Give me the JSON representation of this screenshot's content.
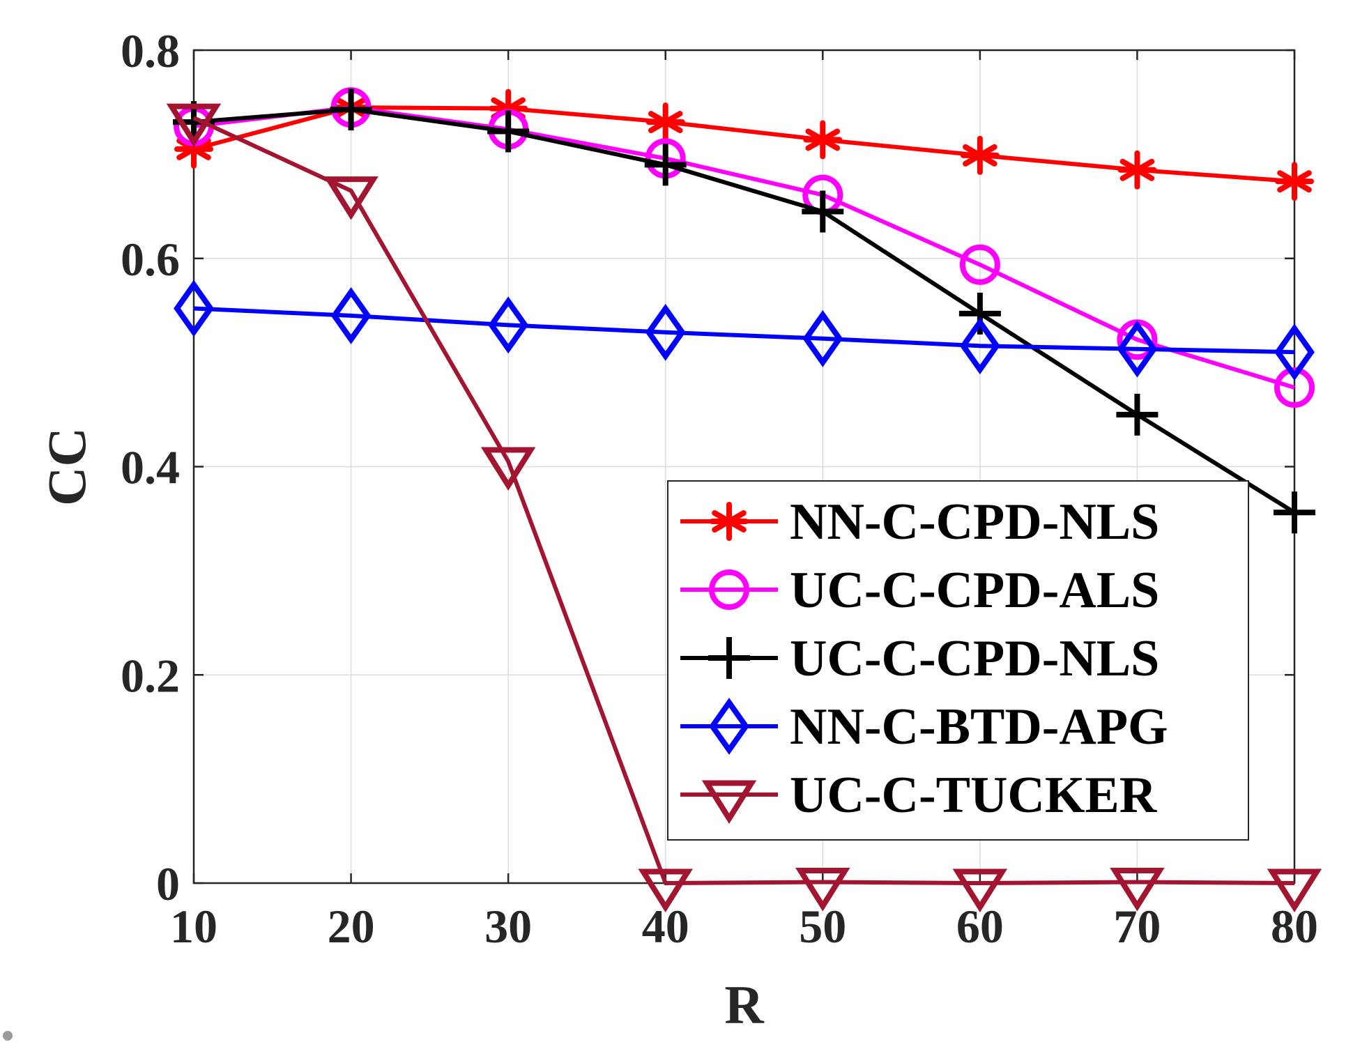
{
  "chart_data": {
    "type": "line",
    "xlabel": "R",
    "ylabel": "CC",
    "xlim": [
      10,
      80
    ],
    "ylim": [
      0,
      0.8
    ],
    "x": [
      10,
      20,
      30,
      40,
      50,
      60,
      70,
      80
    ],
    "xticks": [
      "10",
      "20",
      "30",
      "40",
      "50",
      "60",
      "70",
      "80"
    ],
    "yticks": [
      "0",
      "0.2",
      "0.4",
      "0.6",
      "0.8"
    ],
    "grid": true,
    "legend_position": "bottom-right",
    "series": [
      {
        "name": "NN-C-CPD-NLS",
        "color": "#ff0000",
        "marker": "asterisk",
        "values": [
          0.705,
          0.745,
          0.744,
          0.731,
          0.714,
          0.699,
          0.685,
          0.674
        ]
      },
      {
        "name": "UC-C-CPD-ALS",
        "color": "#ff00ff",
        "marker": "circle",
        "values": [
          0.727,
          0.745,
          0.724,
          0.696,
          0.661,
          0.594,
          0.522,
          0.476
        ]
      },
      {
        "name": "UC-C-CPD-NLS",
        "color": "#000000",
        "marker": "plus",
        "values": [
          0.731,
          0.743,
          0.722,
          0.69,
          0.645,
          0.547,
          0.45,
          0.356
        ]
      },
      {
        "name": "NN-C-BTD-APG",
        "color": "#0000ff",
        "marker": "diamond",
        "values": [
          0.552,
          0.545,
          0.536,
          0.529,
          0.523,
          0.516,
          0.513,
          0.51
        ]
      },
      {
        "name": "UC-C-TUCKER",
        "color": "#a2142f",
        "marker": "triangle-down",
        "values": [
          0.735,
          0.665,
          0.405,
          0.0,
          0.001,
          0.0,
          0.001,
          0.0
        ]
      }
    ]
  }
}
